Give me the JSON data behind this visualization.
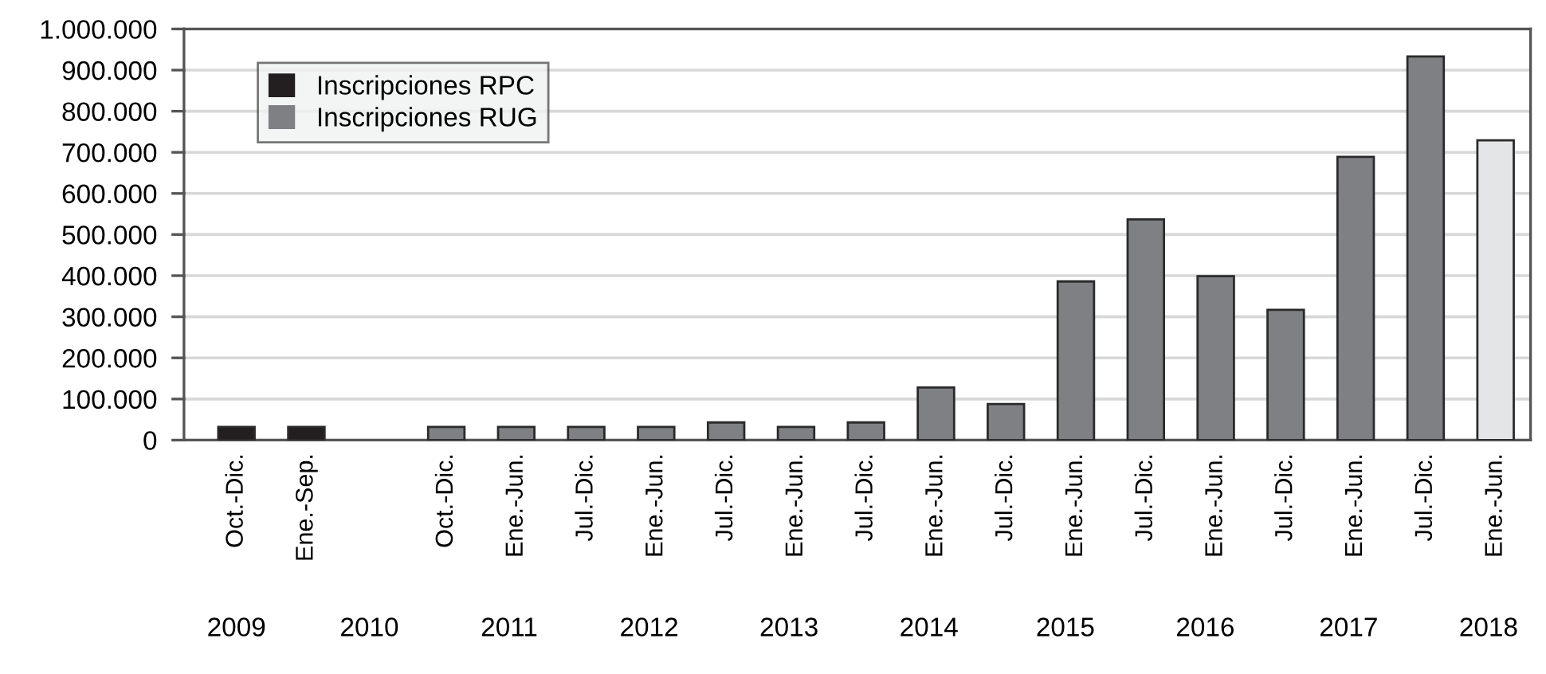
{
  "chart_data": {
    "type": "bar",
    "categories": [
      "Oct.-Dic.",
      "Ene.-Sep.",
      null,
      "Oct.-Dic.",
      "Ene.-Jun.",
      "Jul.-Dic.",
      "Ene.-Jun.",
      "Jul.-Dic.",
      "Ene.-Jun.",
      "Jul.-Dic.",
      "Ene.-Jun.",
      "Jul.-Dic.",
      "Ene.-Jun.",
      "Jul.-Dic.",
      "Ene.-Jun.",
      "Jul.-Dic.",
      "Ene.-Jun.",
      "Jul.-Dic.",
      "Ene.-Jun."
    ],
    "series": [
      {
        "name": "Inscripciones RPC",
        "color": "#231f20",
        "values": [
          32000,
          32000,
          null,
          null,
          null,
          null,
          null,
          null,
          null,
          null,
          null,
          null,
          null,
          null,
          null,
          null,
          null,
          null,
          null
        ]
      },
      {
        "name": "Inscripciones RUG",
        "color": "#7f8084",
        "colors": [
          null,
          null,
          null,
          "#7f8084",
          "#7f8084",
          "#7f8084",
          "#7f8084",
          "#7f8084",
          "#7f8084",
          "#7f8084",
          "#7f8084",
          "#7f8084",
          "#7f8084",
          "#7f8084",
          "#7f8084",
          "#7f8084",
          "#7f8084",
          "#7f8084",
          "#e4e5e7"
        ],
        "values": [
          null,
          null,
          null,
          32000,
          32000,
          32000,
          32000,
          43000,
          32000,
          43000,
          128000,
          88000,
          386000,
          537000,
          399000,
          317000,
          689000,
          933000,
          729000
        ]
      }
    ],
    "ylim": [
      0,
      1000000
    ],
    "yticks": [
      {
        "value": 0,
        "label": "0"
      },
      {
        "value": 100000,
        "label": "100.000"
      },
      {
        "value": 200000,
        "label": "200.000"
      },
      {
        "value": 300000,
        "label": "300.000"
      },
      {
        "value": 400000,
        "label": "400.000"
      },
      {
        "value": 500000,
        "label": "500.000"
      },
      {
        "value": 600000,
        "label": "600.000"
      },
      {
        "value": 700000,
        "label": "700.000"
      },
      {
        "value": 800000,
        "label": "800.000"
      },
      {
        "value": 900000,
        "label": "900.000"
      },
      {
        "value": 1000000,
        "label": "1.000.000"
      }
    ],
    "annotations": [
      "2009",
      "2010",
      "2011",
      "2012",
      "2013",
      "2014",
      "2015",
      "2016",
      "2017",
      "2018"
    ],
    "grid": "y",
    "legend": "top left"
  }
}
